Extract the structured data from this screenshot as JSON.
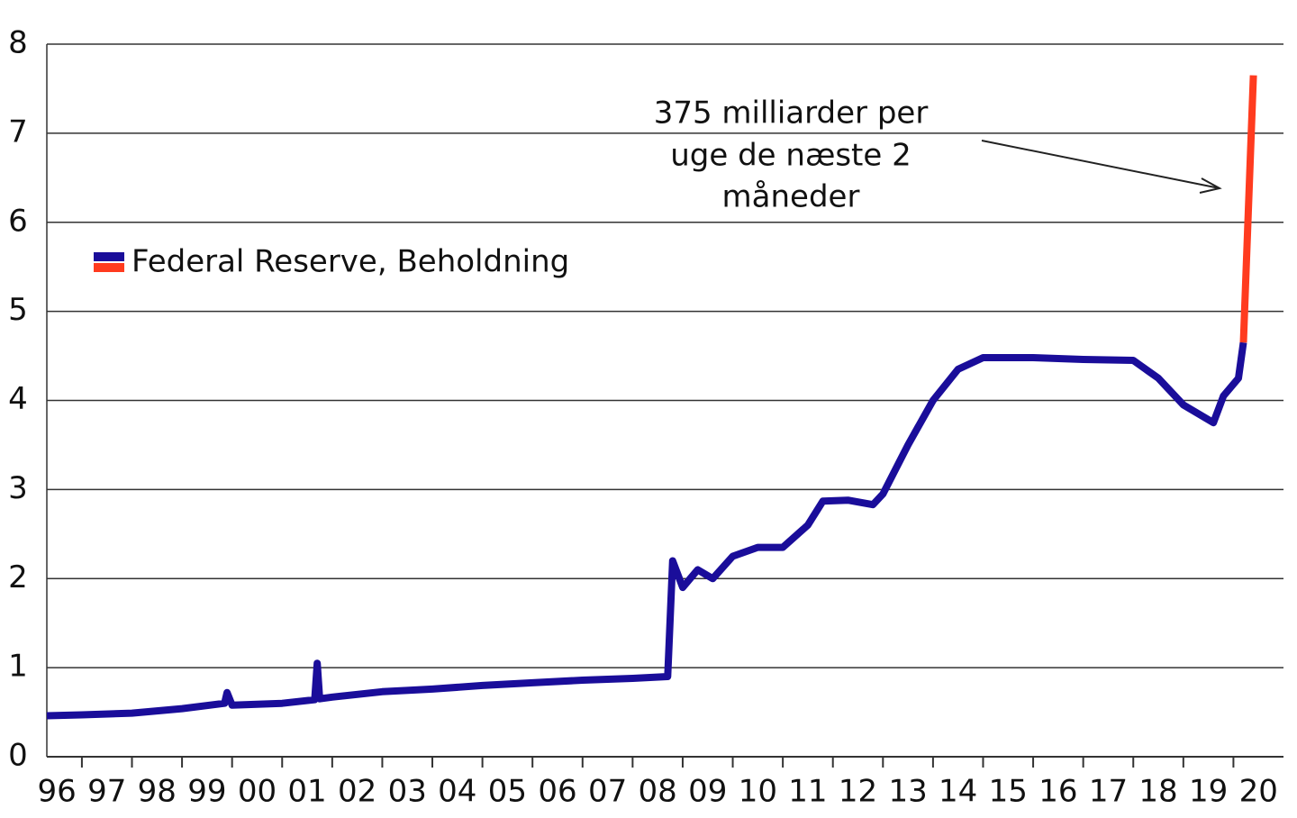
{
  "chart_data": {
    "type": "line",
    "annotation": [
      "375 milliarder per",
      "uge de næste 2",
      "måneder"
    ],
    "xlim": [
      1996.3,
      2021
    ],
    "xticks": [
      {
        "value": 1996.5,
        "label": "96"
      },
      {
        "value": 1997.5,
        "label": "97"
      },
      {
        "value": 1998.5,
        "label": "98"
      },
      {
        "value": 1999.5,
        "label": "99"
      },
      {
        "value": 2000.5,
        "label": "00"
      },
      {
        "value": 2001.5,
        "label": "01"
      },
      {
        "value": 2002.5,
        "label": "02"
      },
      {
        "value": 2003.5,
        "label": "03"
      },
      {
        "value": 2004.5,
        "label": "04"
      },
      {
        "value": 2005.5,
        "label": "05"
      },
      {
        "value": 2006.5,
        "label": "06"
      },
      {
        "value": 2007.5,
        "label": "07"
      },
      {
        "value": 2008.5,
        "label": "08"
      },
      {
        "value": 2009.5,
        "label": "09"
      },
      {
        "value": 2010.5,
        "label": "10"
      },
      {
        "value": 2011.5,
        "label": "11"
      },
      {
        "value": 2012.5,
        "label": "12"
      },
      {
        "value": 2013.5,
        "label": "13"
      },
      {
        "value": 2014.5,
        "label": "14"
      },
      {
        "value": 2015.5,
        "label": "15"
      },
      {
        "value": 2016.5,
        "label": "16"
      },
      {
        "value": 2017.5,
        "label": "17"
      },
      {
        "value": 2018.5,
        "label": "18"
      },
      {
        "value": 2019.5,
        "label": "19"
      },
      {
        "value": 2020.5,
        "label": "20"
      }
    ],
    "ylim": [
      0,
      8
    ],
    "yticks": [
      0,
      1,
      2,
      3,
      4,
      5,
      6,
      7,
      8
    ],
    "grid": true,
    "legend": "upper left",
    "series": [
      {
        "name": "Federal Reserve, Beholdning",
        "color": "#1a0d9a",
        "x": [
          1996.3,
          1997,
          1998,
          1999,
          1999.85,
          1999.9,
          2000,
          2001,
          2001.65,
          2001.7,
          2001.75,
          2002,
          2003,
          2004,
          2005,
          2006,
          2007,
          2008,
          2008.7,
          2008.8,
          2009,
          2009.3,
          2009.6,
          2010,
          2010.5,
          2011,
          2011.5,
          2011.8,
          2012.3,
          2012.8,
          2013,
          2013.5,
          2014,
          2014.5,
          2015,
          2016,
          2017,
          2018,
          2018.5,
          2019,
          2019.6,
          2019.8,
          2020.1,
          2020.2
        ],
        "values": [
          0.46,
          0.47,
          0.49,
          0.54,
          0.6,
          0.72,
          0.58,
          0.6,
          0.64,
          1.05,
          0.65,
          0.67,
          0.73,
          0.76,
          0.8,
          0.83,
          0.86,
          0.88,
          0.9,
          2.2,
          1.9,
          2.1,
          2.0,
          2.25,
          2.35,
          2.35,
          2.6,
          2.87,
          2.88,
          2.83,
          2.95,
          3.5,
          4.0,
          4.35,
          4.48,
          4.48,
          4.46,
          4.45,
          4.25,
          3.95,
          3.75,
          4.05,
          4.25,
          4.65
        ]
      },
      {
        "color": "#ff3b1f",
        "x": [
          2020.2,
          2020.4
        ],
        "values": [
          4.65,
          7.65
        ]
      }
    ]
  }
}
